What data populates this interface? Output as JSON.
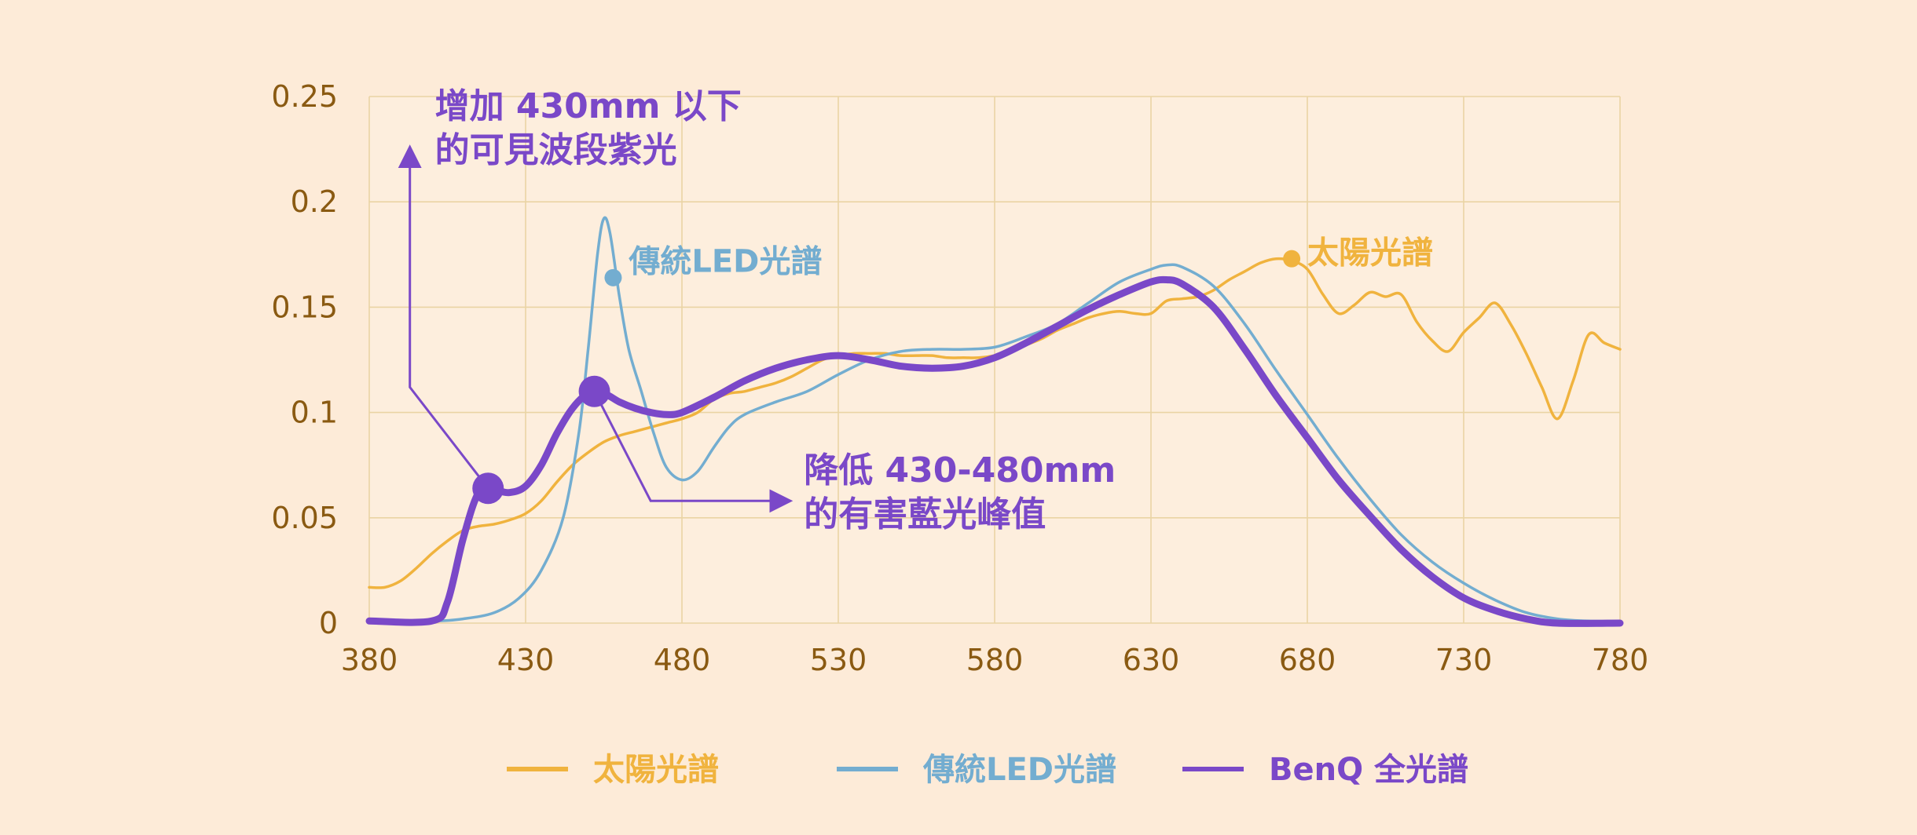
{
  "colors": {
    "background": "#fdebd8",
    "plot_background": "#fdeedd",
    "grid": "#ead4a4",
    "tick_text": "#8a5a12",
    "sun": "#f0b33e",
    "led": "#73add0",
    "benq": "#7a48c8"
  },
  "chart_data": {
    "type": "line",
    "xlim": [
      380,
      780
    ],
    "ylim": [
      0,
      0.25
    ],
    "grid": true,
    "legend_position": "bottom",
    "x_ticks": [
      "380",
      "430",
      "480",
      "530",
      "580",
      "630",
      "680",
      "730",
      "780"
    ],
    "y_ticks": [
      "0",
      "0.05",
      "0.1",
      "0.15",
      "0.2",
      "0.25"
    ],
    "series": [
      {
        "name": "太陽光譜",
        "color": "#f0b33e",
        "points": [
          [
            380,
            0.017
          ],
          [
            385,
            0.017
          ],
          [
            390,
            0.02
          ],
          [
            395,
            0.026
          ],
          [
            400,
            0.033
          ],
          [
            405,
            0.039
          ],
          [
            410,
            0.044
          ],
          [
            415,
            0.046
          ],
          [
            420,
            0.047
          ],
          [
            425,
            0.049
          ],
          [
            430,
            0.052
          ],
          [
            435,
            0.058
          ],
          [
            440,
            0.067
          ],
          [
            445,
            0.075
          ],
          [
            450,
            0.081
          ],
          [
            455,
            0.086
          ],
          [
            460,
            0.089
          ],
          [
            465,
            0.091
          ],
          [
            470,
            0.093
          ],
          [
            475,
            0.095
          ],
          [
            480,
            0.097
          ],
          [
            485,
            0.1
          ],
          [
            490,
            0.106
          ],
          [
            495,
            0.109
          ],
          [
            500,
            0.11
          ],
          [
            505,
            0.112
          ],
          [
            510,
            0.114
          ],
          [
            515,
            0.117
          ],
          [
            520,
            0.121
          ],
          [
            525,
            0.125
          ],
          [
            530,
            0.127
          ],
          [
            535,
            0.128
          ],
          [
            540,
            0.128
          ],
          [
            545,
            0.128
          ],
          [
            550,
            0.127
          ],
          [
            555,
            0.127
          ],
          [
            560,
            0.127
          ],
          [
            565,
            0.126
          ],
          [
            570,
            0.126
          ],
          [
            575,
            0.126
          ],
          [
            580,
            0.127
          ],
          [
            585,
            0.129
          ],
          [
            590,
            0.132
          ],
          [
            595,
            0.135
          ],
          [
            600,
            0.139
          ],
          [
            605,
            0.142
          ],
          [
            610,
            0.145
          ],
          [
            615,
            0.147
          ],
          [
            620,
            0.148
          ],
          [
            625,
            0.147
          ],
          [
            630,
            0.147
          ],
          [
            635,
            0.153
          ],
          [
            640,
            0.154
          ],
          [
            645,
            0.155
          ],
          [
            650,
            0.158
          ],
          [
            655,
            0.163
          ],
          [
            660,
            0.167
          ],
          [
            665,
            0.171
          ],
          [
            670,
            0.173
          ],
          [
            675,
            0.172
          ],
          [
            680,
            0.168
          ],
          [
            685,
            0.156
          ],
          [
            690,
            0.147
          ],
          [
            695,
            0.151
          ],
          [
            700,
            0.157
          ],
          [
            705,
            0.155
          ],
          [
            710,
            0.156
          ],
          [
            715,
            0.143
          ],
          [
            720,
            0.134
          ],
          [
            725,
            0.129
          ],
          [
            730,
            0.138
          ],
          [
            735,
            0.145
          ],
          [
            740,
            0.152
          ],
          [
            745,
            0.142
          ],
          [
            750,
            0.128
          ],
          [
            755,
            0.112
          ],
          [
            760,
            0.097
          ],
          [
            765,
            0.115
          ],
          [
            770,
            0.137
          ],
          [
            775,
            0.133
          ],
          [
            780,
            0.13
          ]
        ]
      },
      {
        "name": "傳統LED光譜",
        "color": "#73add0",
        "points": [
          [
            380,
            0.001
          ],
          [
            400,
            0.001
          ],
          [
            410,
            0.002
          ],
          [
            420,
            0.005
          ],
          [
            428,
            0.012
          ],
          [
            435,
            0.025
          ],
          [
            442,
            0.05
          ],
          [
            447,
            0.09
          ],
          [
            450,
            0.13
          ],
          [
            453,
            0.175
          ],
          [
            455,
            0.192
          ],
          [
            457,
            0.185
          ],
          [
            460,
            0.155
          ],
          [
            463,
            0.13
          ],
          [
            467,
            0.11
          ],
          [
            471,
            0.09
          ],
          [
            475,
            0.074
          ],
          [
            480,
            0.068
          ],
          [
            485,
            0.072
          ],
          [
            490,
            0.083
          ],
          [
            495,
            0.093
          ],
          [
            500,
            0.099
          ],
          [
            510,
            0.105
          ],
          [
            520,
            0.11
          ],
          [
            530,
            0.118
          ],
          [
            540,
            0.125
          ],
          [
            550,
            0.129
          ],
          [
            560,
            0.13
          ],
          [
            570,
            0.13
          ],
          [
            580,
            0.131
          ],
          [
            590,
            0.136
          ],
          [
            600,
            0.142
          ],
          [
            610,
            0.152
          ],
          [
            620,
            0.162
          ],
          [
            630,
            0.168
          ],
          [
            635,
            0.17
          ],
          [
            640,
            0.169
          ],
          [
            650,
            0.16
          ],
          [
            660,
            0.142
          ],
          [
            670,
            0.12
          ],
          [
            680,
            0.099
          ],
          [
            690,
            0.078
          ],
          [
            700,
            0.059
          ],
          [
            710,
            0.042
          ],
          [
            720,
            0.029
          ],
          [
            730,
            0.019
          ],
          [
            740,
            0.011
          ],
          [
            750,
            0.005
          ],
          [
            760,
            0.002
          ],
          [
            770,
            0.001
          ],
          [
            780,
            0.001
          ]
        ]
      },
      {
        "name": "BenQ 全光譜",
        "color": "#7a48c8",
        "points": [
          [
            380,
            0.001
          ],
          [
            400,
            0.001
          ],
          [
            405,
            0.01
          ],
          [
            410,
            0.04
          ],
          [
            415,
            0.062
          ],
          [
            420,
            0.063
          ],
          [
            425,
            0.062
          ],
          [
            430,
            0.065
          ],
          [
            435,
            0.075
          ],
          [
            440,
            0.09
          ],
          [
            445,
            0.102
          ],
          [
            450,
            0.109
          ],
          [
            455,
            0.109
          ],
          [
            460,
            0.105
          ],
          [
            465,
            0.102
          ],
          [
            470,
            0.1
          ],
          [
            475,
            0.099
          ],
          [
            480,
            0.1
          ],
          [
            490,
            0.107
          ],
          [
            500,
            0.115
          ],
          [
            510,
            0.121
          ],
          [
            520,
            0.125
          ],
          [
            530,
            0.127
          ],
          [
            540,
            0.125
          ],
          [
            550,
            0.122
          ],
          [
            560,
            0.121
          ],
          [
            570,
            0.122
          ],
          [
            580,
            0.126
          ],
          [
            590,
            0.133
          ],
          [
            600,
            0.141
          ],
          [
            610,
            0.149
          ],
          [
            620,
            0.156
          ],
          [
            630,
            0.162
          ],
          [
            635,
            0.163
          ],
          [
            640,
            0.161
          ],
          [
            650,
            0.15
          ],
          [
            660,
            0.13
          ],
          [
            670,
            0.108
          ],
          [
            680,
            0.088
          ],
          [
            690,
            0.068
          ],
          [
            700,
            0.051
          ],
          [
            710,
            0.035
          ],
          [
            720,
            0.022
          ],
          [
            730,
            0.012
          ],
          [
            740,
            0.006
          ],
          [
            750,
            0.002
          ],
          [
            760,
            0.0
          ],
          [
            780,
            0.0
          ]
        ]
      }
    ],
    "markers": [
      {
        "series": "傳統LED光譜",
        "x": 458,
        "y": 0.164,
        "color": "#73add0",
        "size": "small"
      },
      {
        "series": "太陽光譜",
        "x": 675,
        "y": 0.173,
        "color": "#f0b33e",
        "size": "small"
      },
      {
        "series": "BenQ 全光譜",
        "x": 418,
        "y": 0.064,
        "color": "#7a48c8",
        "size": "large"
      },
      {
        "series": "BenQ 全光譜",
        "x": 452,
        "y": 0.11,
        "color": "#7a48c8",
        "size": "large"
      }
    ],
    "series_labels": [
      {
        "text": "傳統LED光譜",
        "x": 463,
        "y": 0.172,
        "color": "#73add0"
      },
      {
        "text": "太陽光譜",
        "x": 680,
        "y": 0.176,
        "color": "#f0b33e"
      }
    ],
    "annotations": [
      {
        "lines": [
          "增加 430mm 以下",
          "的可見波段紫光"
        ],
        "text_x": 401,
        "text_y": 0.24,
        "arrow": [
          [
            418,
            0.064
          ],
          [
            393,
            0.112
          ],
          [
            393,
            0.225
          ]
        ]
      },
      {
        "lines": [
          "降低 430-480mm",
          "的有害藍光峰值"
        ],
        "text_x": 519,
        "text_y": 0.067,
        "arrow": [
          [
            452,
            0.11
          ],
          [
            470,
            0.058
          ],
          [
            514,
            0.058
          ]
        ]
      }
    ],
    "legend": [
      {
        "label": "太陽光譜",
        "color": "#f0b33e"
      },
      {
        "label": "傳統LED光譜",
        "color": "#73add0"
      },
      {
        "label": "BenQ 全光譜",
        "color": "#7a48c8"
      }
    ]
  }
}
